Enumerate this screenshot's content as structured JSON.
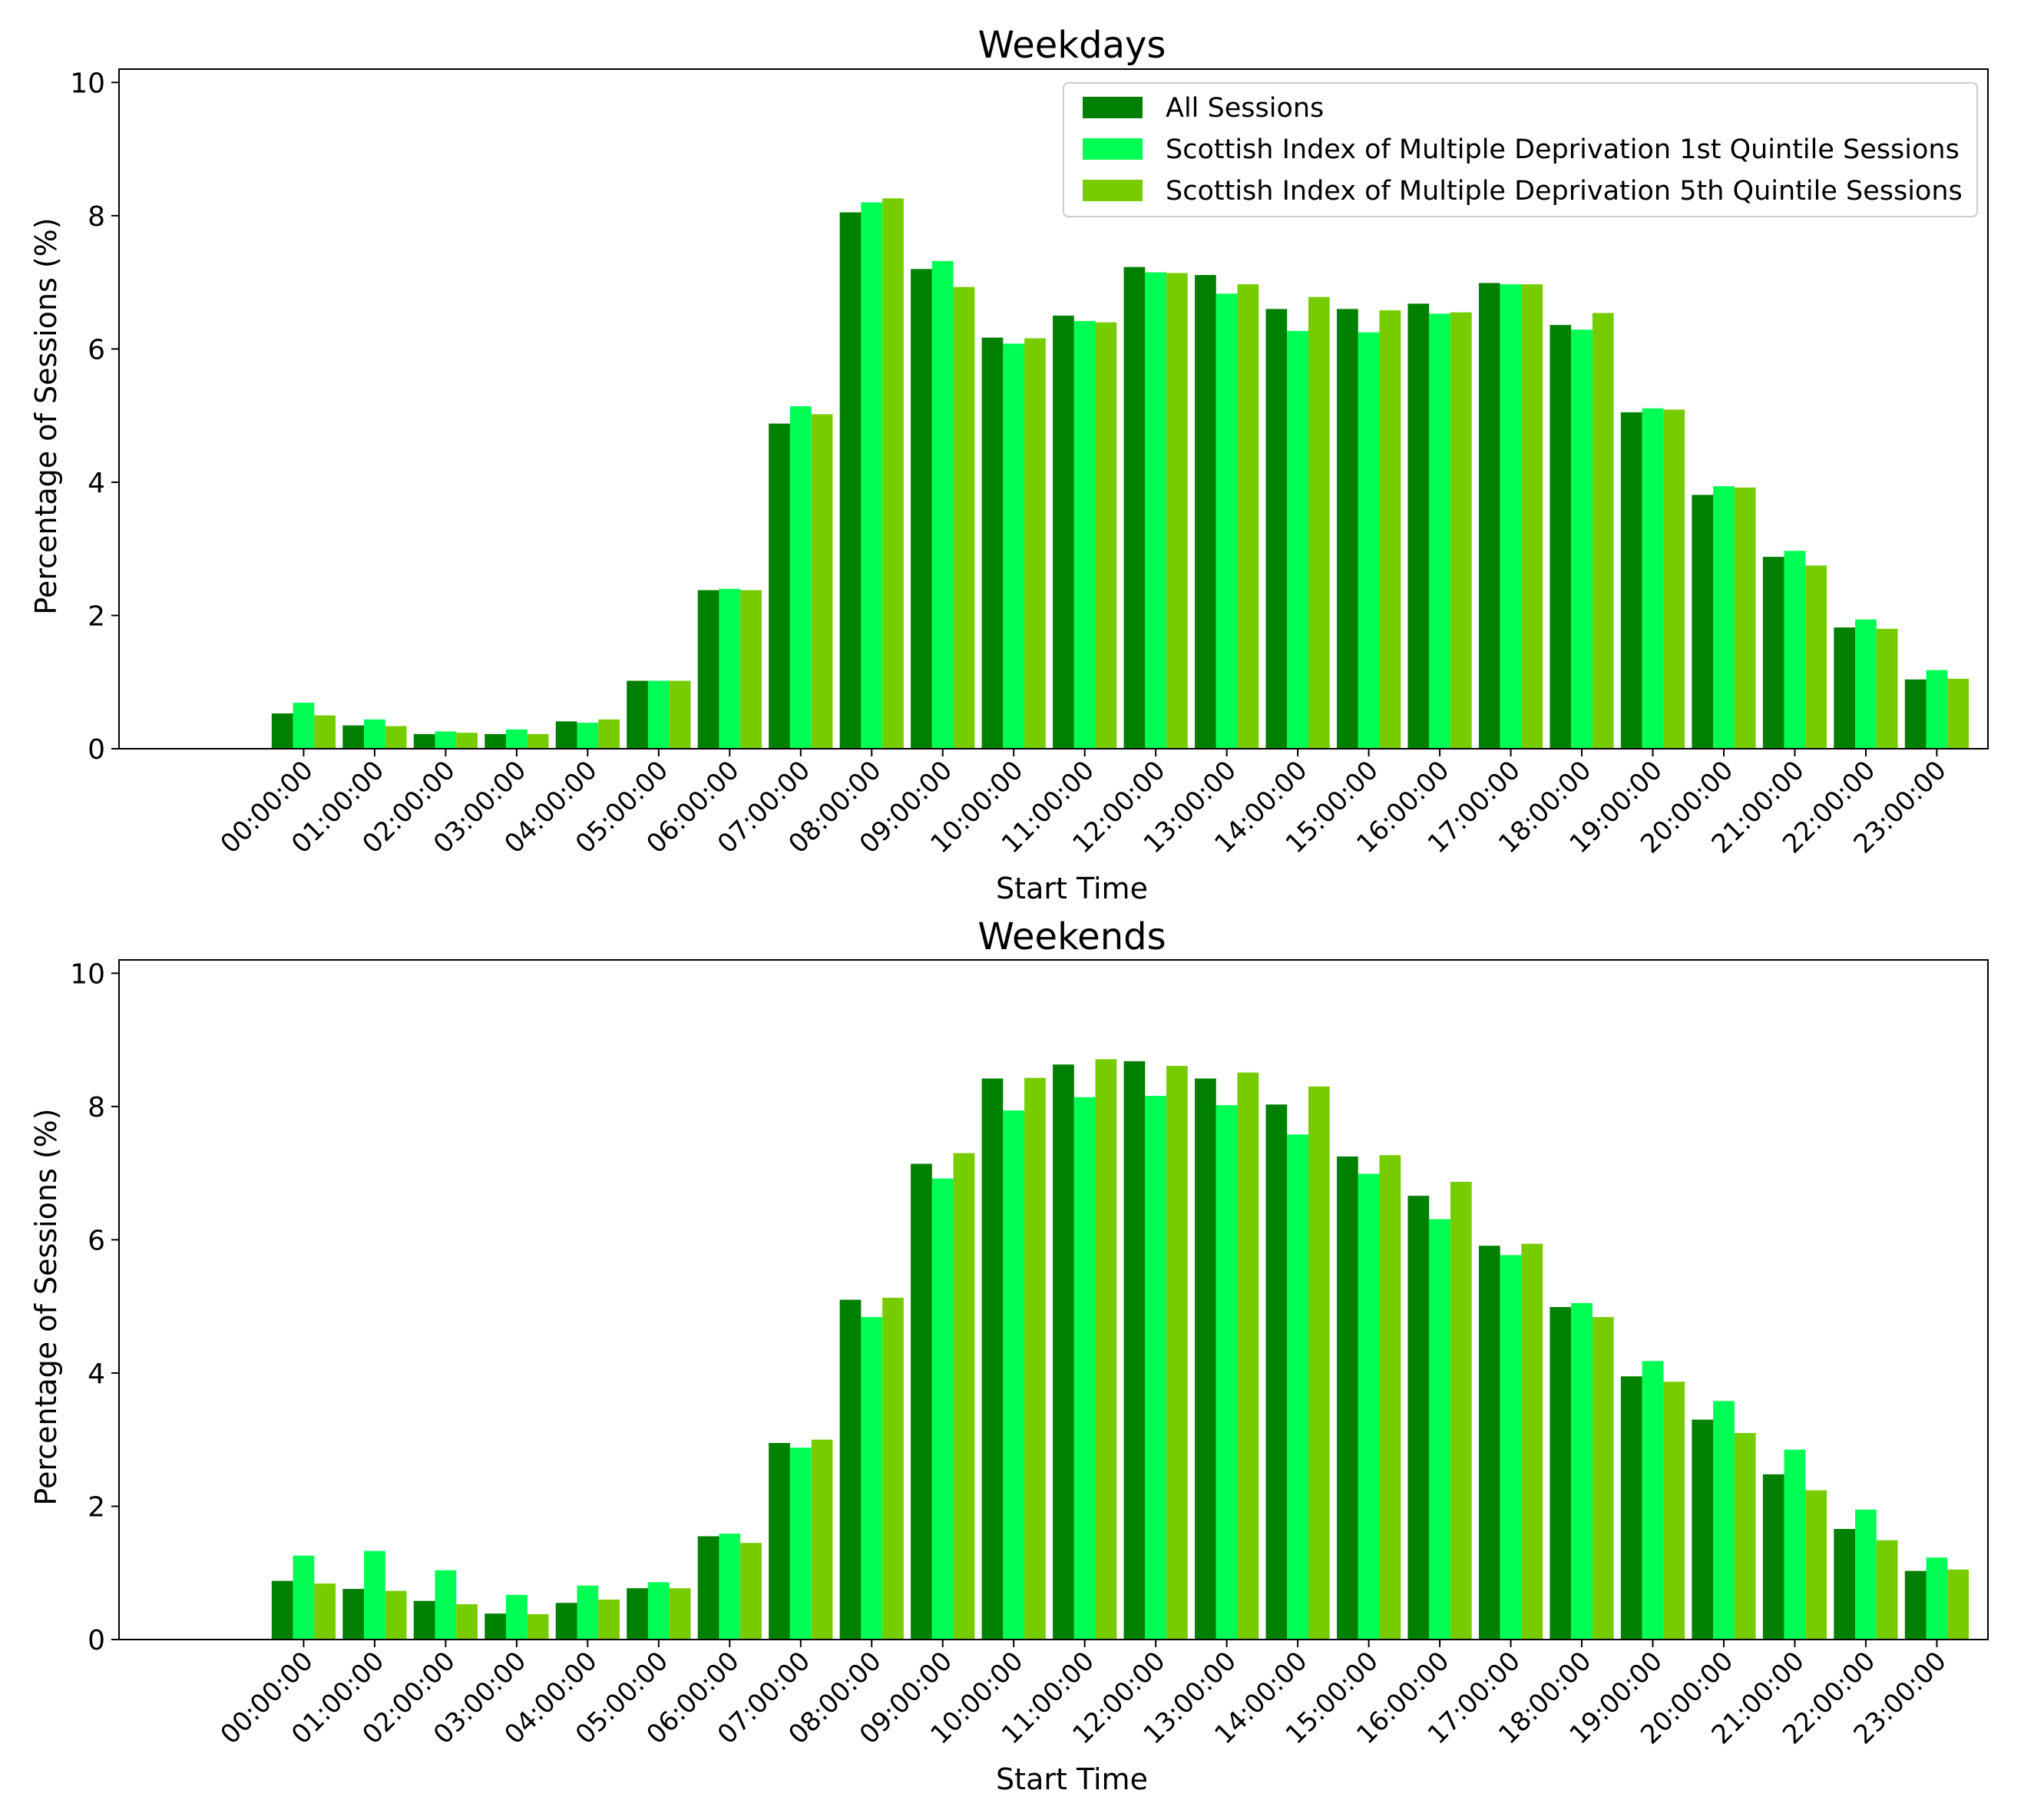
{
  "chart_data": [
    {
      "type": "bar",
      "title": "Weekdays",
      "xlabel": "Start Time",
      "ylabel": "Percentage of Sessions (%)",
      "ylim": [
        0,
        10.2
      ],
      "yticks": [
        0,
        2,
        4,
        6,
        8,
        10
      ],
      "grid": false,
      "legend_position": "top-right",
      "categories": [
        "00:00:00",
        "01:00:00",
        "02:00:00",
        "03:00:00",
        "04:00:00",
        "05:00:00",
        "06:00:00",
        "07:00:00",
        "08:00:00",
        "09:00:00",
        "10:00:00",
        "11:00:00",
        "12:00:00",
        "13:00:00",
        "14:00:00",
        "15:00:00",
        "16:00:00",
        "17:00:00",
        "18:00:00",
        "19:00:00",
        "20:00:00",
        "21:00:00",
        "22:00:00",
        "23:00:00"
      ],
      "series": [
        {
          "name": "All Sessions",
          "color": "#008000",
          "values": [
            0.53,
            0.35,
            0.22,
            0.22,
            0.41,
            1.02,
            2.38,
            4.88,
            8.05,
            7.2,
            6.17,
            6.5,
            7.23,
            7.11,
            6.6,
            6.6,
            6.68,
            6.99,
            6.36,
            5.05,
            3.81,
            2.88,
            1.82,
            1.04
          ]
        },
        {
          "name": "Scottish Index of Multiple Deprivation 1st Quintile Sessions",
          "color": "#00ff55",
          "values": [
            0.69,
            0.44,
            0.26,
            0.29,
            0.39,
            1.02,
            2.4,
            5.14,
            8.2,
            7.32,
            6.08,
            6.42,
            7.15,
            6.83,
            6.27,
            6.25,
            6.53,
            6.97,
            6.29,
            5.11,
            3.94,
            2.97,
            1.94,
            1.18
          ]
        },
        {
          "name": "Scottish Index of Multiple Deprivation 5th Quintile Sessions",
          "color": "#77cc00",
          "values": [
            0.5,
            0.34,
            0.24,
            0.22,
            0.44,
            1.02,
            2.38,
            5.02,
            8.26,
            6.93,
            6.16,
            6.4,
            7.14,
            6.97,
            6.78,
            6.58,
            6.55,
            6.97,
            6.54,
            5.09,
            3.92,
            2.75,
            1.8,
            1.05
          ]
        }
      ]
    },
    {
      "type": "bar",
      "title": "Weekends",
      "xlabel": "Start Time",
      "ylabel": "Percentage of Sessions (%)",
      "ylim": [
        0,
        10.2
      ],
      "yticks": [
        0,
        2,
        4,
        6,
        8,
        10
      ],
      "grid": false,
      "legend_position": "none",
      "categories": [
        "00:00:00",
        "01:00:00",
        "02:00:00",
        "03:00:00",
        "04:00:00",
        "05:00:00",
        "06:00:00",
        "07:00:00",
        "08:00:00",
        "09:00:00",
        "10:00:00",
        "11:00:00",
        "12:00:00",
        "13:00:00",
        "14:00:00",
        "15:00:00",
        "16:00:00",
        "17:00:00",
        "18:00:00",
        "19:00:00",
        "20:00:00",
        "21:00:00",
        "22:00:00",
        "23:00:00"
      ],
      "series": [
        {
          "name": "All Sessions",
          "color": "#008000",
          "values": [
            0.88,
            0.76,
            0.58,
            0.39,
            0.55,
            0.77,
            1.55,
            2.95,
            5.1,
            7.14,
            8.42,
            8.63,
            8.68,
            8.42,
            8.03,
            7.25,
            6.66,
            5.91,
            4.99,
            3.95,
            3.3,
            2.48,
            1.66,
            1.03
          ]
        },
        {
          "name": "Scottish Index of Multiple Deprivation 1st Quintile Sessions",
          "color": "#00ff55",
          "values": [
            1.26,
            1.33,
            1.04,
            0.67,
            0.81,
            0.86,
            1.59,
            2.88,
            4.84,
            6.92,
            7.94,
            8.14,
            8.16,
            8.02,
            7.58,
            6.99,
            6.31,
            5.77,
            5.05,
            4.18,
            3.58,
            2.85,
            1.95,
            1.23
          ]
        },
        {
          "name": "Scottish Index of Multiple Deprivation 5th Quintile Sessions",
          "color": "#77cc00",
          "values": [
            0.84,
            0.73,
            0.53,
            0.38,
            0.6,
            0.77,
            1.45,
            3.0,
            5.13,
            7.3,
            8.43,
            8.71,
            8.61,
            8.51,
            8.3,
            7.27,
            6.87,
            5.94,
            4.84,
            3.87,
            3.1,
            2.24,
            1.49,
            1.05
          ]
        }
      ]
    }
  ]
}
